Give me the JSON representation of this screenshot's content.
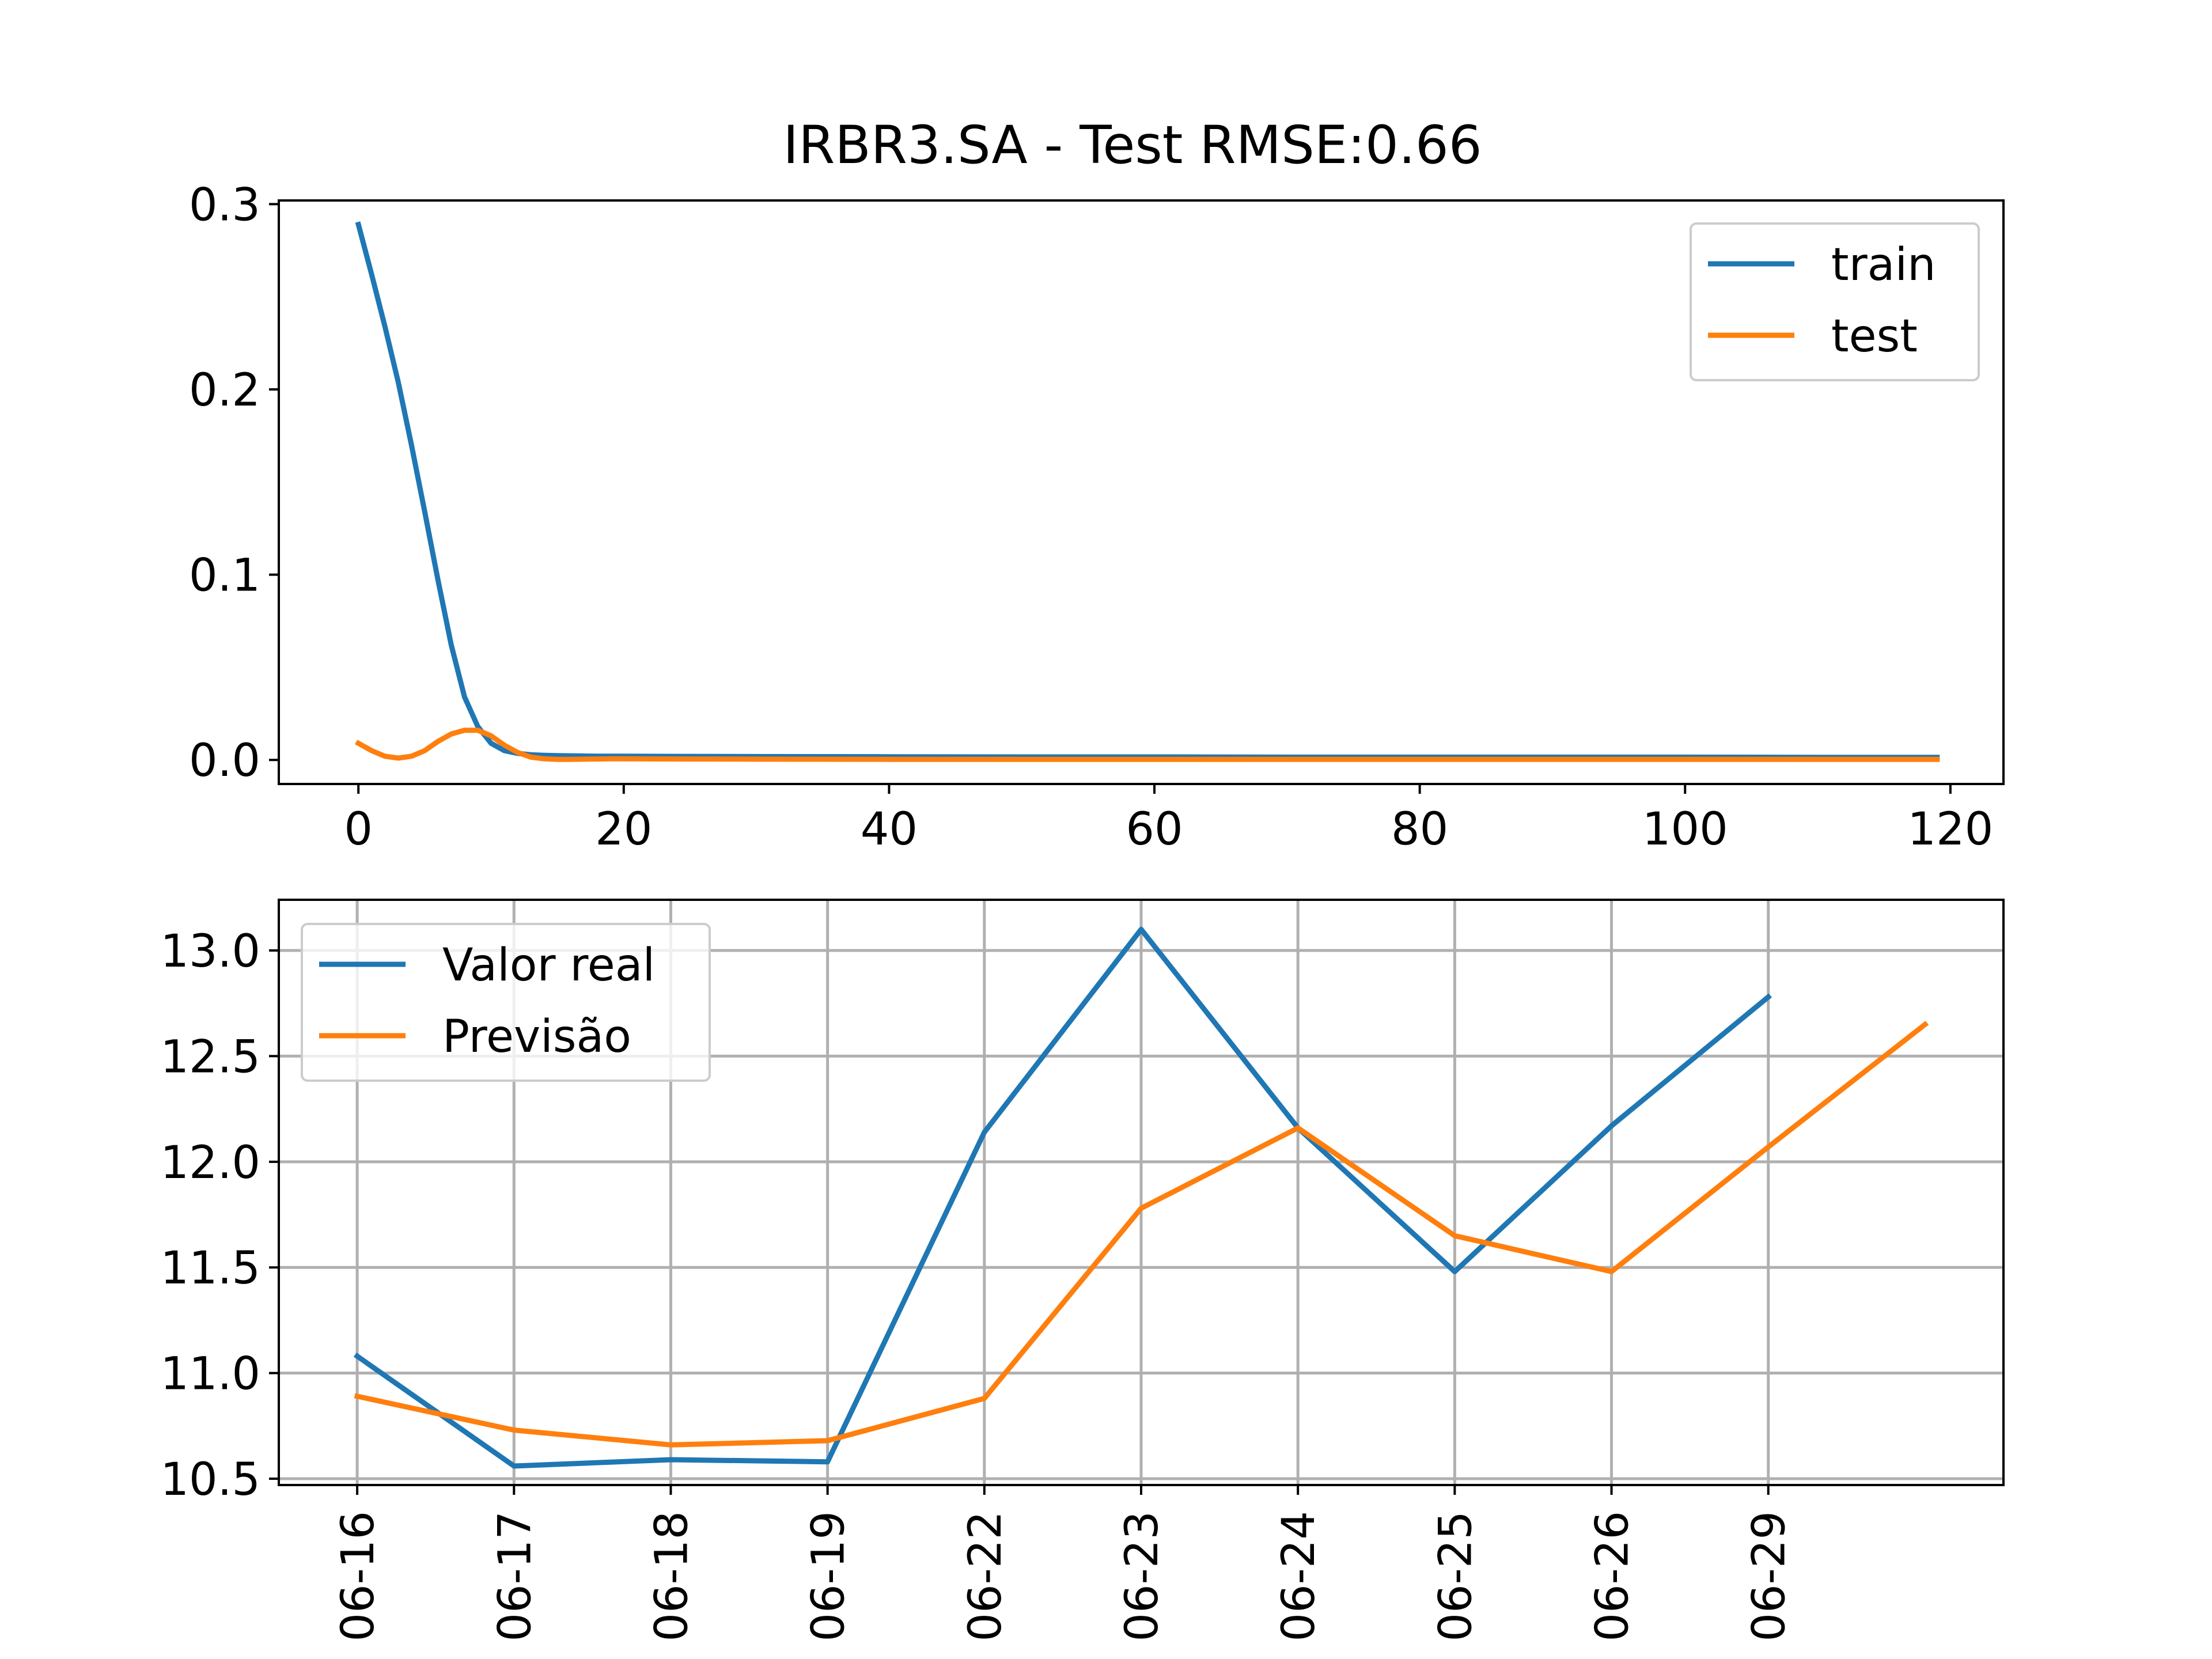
{
  "figure": {
    "title": "IRBR3.SA - Test RMSE:0.66"
  },
  "chart_data": [
    {
      "type": "line",
      "title": "IRBR3.SA - Test RMSE:0.66",
      "xlim": [
        -6,
        124
      ],
      "ylim": [
        -0.013,
        0.302
      ],
      "xticks": [
        0,
        20,
        40,
        60,
        80,
        100,
        120
      ],
      "xtick_labels": [
        "0",
        "20",
        "40",
        "60",
        "80",
        "100",
        "120"
      ],
      "yticks": [
        0.0,
        0.1,
        0.2,
        0.3
      ],
      "ytick_labels": [
        "0.0",
        "0.1",
        "0.2",
        "0.3"
      ],
      "grid": false,
      "legend": {
        "position": "upper right",
        "entries": [
          "train",
          "test"
        ]
      },
      "series": [
        {
          "name": "train",
          "color": "#1f77b4",
          "x": [
            0,
            1,
            2,
            3,
            4,
            5,
            6,
            7,
            8,
            9,
            10,
            11,
            12,
            13,
            14,
            15,
            16,
            17,
            18,
            19,
            20,
            25,
            30,
            40,
            50,
            60,
            70,
            80,
            90,
            100,
            110,
            119
          ],
          "y": [
            0.289,
            0.262,
            0.234,
            0.204,
            0.17,
            0.134,
            0.097,
            0.062,
            0.034,
            0.018,
            0.009,
            0.005,
            0.0035,
            0.0028,
            0.0025,
            0.0023,
            0.0022,
            0.0021,
            0.002,
            0.002,
            0.002,
            0.0019,
            0.0018,
            0.0017,
            0.0016,
            0.0016,
            0.0015,
            0.0015,
            0.0015,
            0.0015,
            0.0014,
            0.0014
          ]
        },
        {
          "name": "test",
          "color": "#ff7f0e",
          "x": [
            0,
            1,
            2,
            3,
            4,
            5,
            6,
            7,
            8,
            9,
            10,
            11,
            12,
            13,
            14,
            15,
            16,
            17,
            18,
            19,
            20,
            25,
            30,
            40,
            50,
            60,
            70,
            80,
            90,
            100,
            110,
            119
          ],
          "y": [
            0.009,
            0.005,
            0.002,
            0.001,
            0.002,
            0.005,
            0.01,
            0.014,
            0.016,
            0.016,
            0.013,
            0.008,
            0.004,
            0.0015,
            0.0006,
            0.0003,
            0.0003,
            0.0004,
            0.0005,
            0.0006,
            0.0006,
            0.0005,
            0.0004,
            0.0003,
            0.0003,
            0.0003,
            0.0003,
            0.0003,
            0.0003,
            0.0003,
            0.0003,
            0.0003
          ]
        }
      ]
    },
    {
      "type": "line",
      "xlim": [
        -0.5,
        10.5
      ],
      "ylim": [
        10.47,
        13.24
      ],
      "categories": [
        "06-16",
        "06-17",
        "06-18",
        "06-19",
        "06-22",
        "06-23",
        "06-24",
        "06-25",
        "06-26",
        "06-29",
        ""
      ],
      "xticks": [
        0,
        1,
        2,
        3,
        4,
        5,
        6,
        7,
        8,
        9
      ],
      "xtick_labels": [
        "06-16",
        "06-17",
        "06-18",
        "06-19",
        "06-22",
        "06-23",
        "06-24",
        "06-25",
        "06-26",
        "06-29"
      ],
      "yticks": [
        10.5,
        11.0,
        11.5,
        12.0,
        12.5,
        13.0
      ],
      "ytick_labels": [
        "10.5",
        "11.0",
        "11.5",
        "12.0",
        "12.5",
        "13.0"
      ],
      "grid": true,
      "legend": {
        "position": "upper left",
        "entries": [
          "Valor real",
          "Previsão"
        ]
      },
      "series": [
        {
          "name": "Valor real",
          "color": "#1f77b4",
          "x": [
            0,
            1,
            2,
            3,
            4,
            5,
            6,
            7,
            8,
            9
          ],
          "y": [
            11.08,
            10.56,
            10.59,
            10.58,
            12.14,
            13.1,
            12.16,
            11.48,
            12.17,
            12.78
          ]
        },
        {
          "name": "Previsão",
          "color": "#ff7f0e",
          "x": [
            0,
            1,
            2,
            3,
            4,
            5,
            6,
            7,
            8,
            9,
            10
          ],
          "y": [
            10.89,
            10.73,
            10.66,
            10.68,
            10.88,
            11.78,
            12.16,
            11.65,
            11.48,
            12.07,
            12.65
          ]
        }
      ]
    }
  ]
}
